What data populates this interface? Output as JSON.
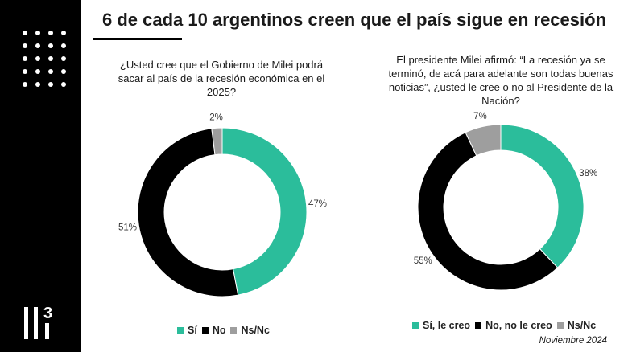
{
  "title": "6 de cada 10 argentinos creen que el país sigue en recesión",
  "logo_text": "3",
  "footer": "Noviembre 2024",
  "colors": {
    "green": "#2bbd9b",
    "black": "#000000",
    "gray": "#9e9e9e"
  },
  "chart_data": [
    {
      "type": "pie",
      "donut": true,
      "title": "¿Usted cree que el Gobierno de Milei podrá sacar al país de la recesión económica en el 2025?",
      "categories": [
        "Sí",
        "No",
        "Ns/Nc"
      ],
      "values": [
        47,
        51,
        2
      ],
      "labels": [
        "47%",
        "51%",
        "2%"
      ],
      "legend": "bottom"
    },
    {
      "type": "pie",
      "donut": true,
      "title": "El presidente Milei afirmó: “La recesión ya se terminó, de acá para adelante son todas buenas noticias”, ¿usted le cree o no al Presidente de la Nación?",
      "categories": [
        "Sí, le creo",
        "No, no le creo",
        "Ns/Nc"
      ],
      "values": [
        38,
        55,
        7
      ],
      "labels": [
        "38%",
        "55%",
        "7%"
      ],
      "legend": "bottom"
    }
  ]
}
